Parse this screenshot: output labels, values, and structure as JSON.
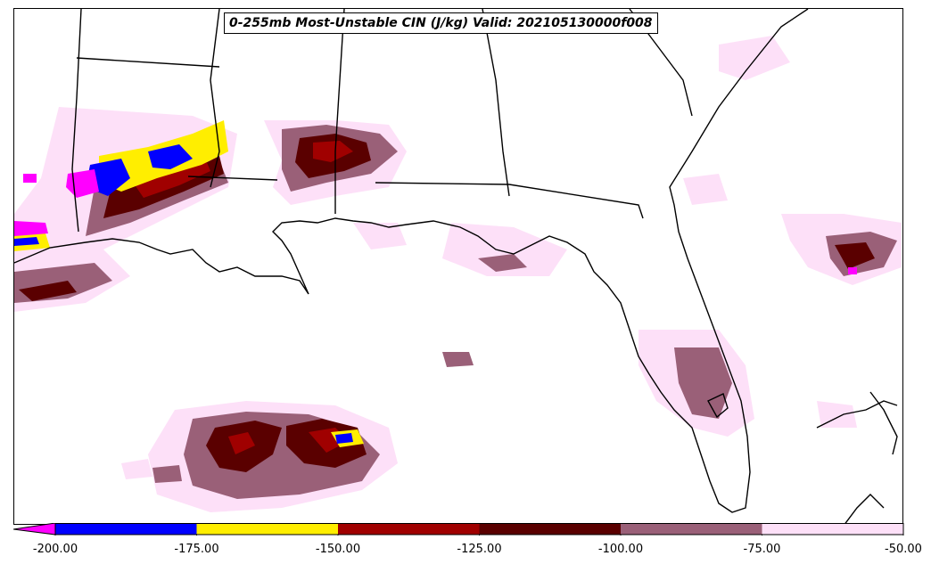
{
  "title": "0-255mb Most-Unstable CIN (J/kg) Valid: 202105130000f008",
  "legend": {
    "levels": [
      {
        "label": "-200.00",
        "color": "#ff00ff",
        "value": -200
      },
      {
        "label": "-175.00",
        "color": "#0000ff",
        "value": -175
      },
      {
        "label": "-150.00",
        "color": "#ffee00",
        "value": -150
      },
      {
        "label": "-125.00",
        "color": "#a00000",
        "value": -125
      },
      {
        "label": "-100.00",
        "color": "#5a0000",
        "value": -100
      },
      {
        "label": "-75.00",
        "color": "#9a6078",
        "value": -75
      },
      {
        "label": "-50.00",
        "color": "#fde0f8",
        "value": -50
      }
    ],
    "extend_color": "#ff00ff"
  },
  "colors": {
    "coastline": "#000000",
    "boundary": "#000000",
    "background": "#ffffff"
  }
}
